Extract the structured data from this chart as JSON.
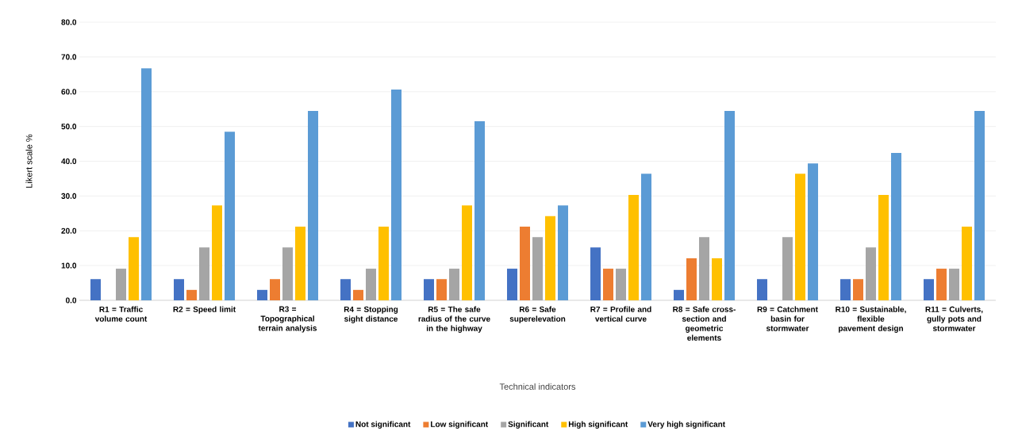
{
  "chart_data": {
    "type": "bar",
    "xlabel": "Technical indicators",
    "ylabel": "Likert scale %",
    "categories": [
      "R1 = Traffic volume count",
      "R2 = Speed limit",
      "R3 = Topographical terrain analysis",
      "R4 = Stopping sight distance",
      "R5 = The safe radius of the curve in the highway",
      "R6 = Safe superelevation",
      "R7 = Profile and vertical curve",
      "R8 = Safe cross-section and geometric elements",
      "R9 = Catchment basin for stormwater",
      "R10 = Sustainable, flexible pavement design",
      "R11 = Culverts, gully pots and stormwater"
    ],
    "series": [
      {
        "name": "Not significant",
        "color": "#4472c4",
        "values": [
          6.1,
          6.1,
          3.0,
          6.1,
          6.1,
          9.1,
          15.2,
          3.0,
          6.1,
          6.1,
          6.1
        ]
      },
      {
        "name": "Low significant",
        "color": "#ed7d31",
        "values": [
          0,
          3.0,
          6.1,
          3.0,
          6.1,
          21.2,
          9.1,
          12.1,
          0,
          6.1,
          9.1
        ]
      },
      {
        "name": "Significant",
        "color": "#a5a5a5",
        "values": [
          9.1,
          15.2,
          15.2,
          9.1,
          9.1,
          18.2,
          9.1,
          18.2,
          18.2,
          15.2,
          9.1
        ]
      },
      {
        "name": "High significant",
        "color": "#ffc000",
        "values": [
          18.2,
          27.3,
          21.2,
          21.2,
          27.3,
          24.2,
          30.3,
          12.1,
          36.4,
          30.3,
          21.2
        ]
      },
      {
        "name": "Very high significant",
        "color": "#5b9bd5",
        "values": [
          66.7,
          48.5,
          54.5,
          60.6,
          51.5,
          27.3,
          36.4,
          54.5,
          39.4,
          42.4,
          54.5
        ]
      }
    ],
    "ylim": [
      0,
      80
    ],
    "yticks": [
      {
        "value": 0,
        "label": "0.0"
      },
      {
        "value": 10,
        "label": "10.0"
      },
      {
        "value": 20,
        "label": "20.0"
      },
      {
        "value": 30,
        "label": "30.0"
      },
      {
        "value": 40,
        "label": "40.0"
      },
      {
        "value": 50,
        "label": "50.0"
      },
      {
        "value": 60,
        "label": "60.0"
      },
      {
        "value": 70,
        "label": "70.0"
      },
      {
        "value": 80,
        "label": "80.0"
      }
    ],
    "grid": "y",
    "legend": "bottom"
  }
}
